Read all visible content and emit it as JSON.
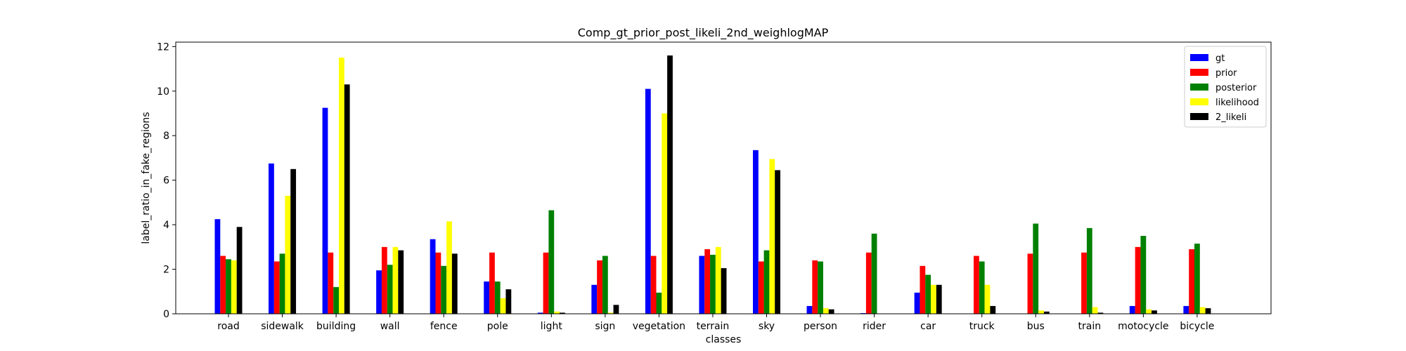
{
  "chart_data": {
    "type": "bar",
    "title": "Comp_gt_prior_post_likeli_2nd_weighlogMAP",
    "xlabel": "classes",
    "ylabel": "label_ratio_in_fake_regions",
    "ylim": [
      0,
      12.2
    ],
    "yticks": [
      0,
      2,
      4,
      6,
      8,
      10,
      12
    ],
    "grid": false,
    "legend_position": "top-right",
    "categories": [
      "road",
      "sidewalk",
      "building",
      "wall",
      "fence",
      "pole",
      "light",
      "sign",
      "vegetation",
      "terrain",
      "sky",
      "person",
      "rider",
      "car",
      "truck",
      "bus",
      "train",
      "motocycle",
      "bicycle"
    ],
    "series": [
      {
        "name": "gt",
        "color": "#0000ff",
        "values": [
          4.25,
          6.75,
          9.25,
          1.95,
          3.35,
          1.45,
          0.05,
          1.3,
          10.1,
          2.6,
          7.35,
          0.35,
          0.03,
          0.95,
          0.0,
          0.0,
          0.0,
          0.35,
          0.35
        ]
      },
      {
        "name": "prior",
        "color": "#ff0000",
        "values": [
          2.6,
          2.35,
          2.75,
          3.0,
          2.75,
          2.75,
          2.75,
          2.4,
          2.6,
          2.9,
          2.35,
          2.4,
          2.75,
          2.15,
          2.6,
          2.7,
          2.75,
          3.0,
          2.9
        ]
      },
      {
        "name": "posterior",
        "color": "#008000",
        "values": [
          2.45,
          2.7,
          1.2,
          2.2,
          2.15,
          1.45,
          4.65,
          2.6,
          0.95,
          2.65,
          2.85,
          2.35,
          3.6,
          1.75,
          2.35,
          4.05,
          3.85,
          3.5,
          3.15
        ]
      },
      {
        "name": "likelihood",
        "color": "#ffff00",
        "values": [
          2.4,
          5.3,
          11.5,
          3.0,
          4.15,
          0.7,
          0.1,
          0.05,
          9.0,
          3.0,
          6.95,
          0.25,
          0.0,
          1.3,
          1.3,
          0.15,
          0.3,
          0.2,
          0.3
        ]
      },
      {
        "name": "2_likeli",
        "color": "#000000",
        "values": [
          3.9,
          6.5,
          10.3,
          2.85,
          2.7,
          1.1,
          0.05,
          0.4,
          11.6,
          2.05,
          6.45,
          0.2,
          0.0,
          1.3,
          0.35,
          0.1,
          0.05,
          0.15,
          0.25
        ]
      }
    ]
  }
}
